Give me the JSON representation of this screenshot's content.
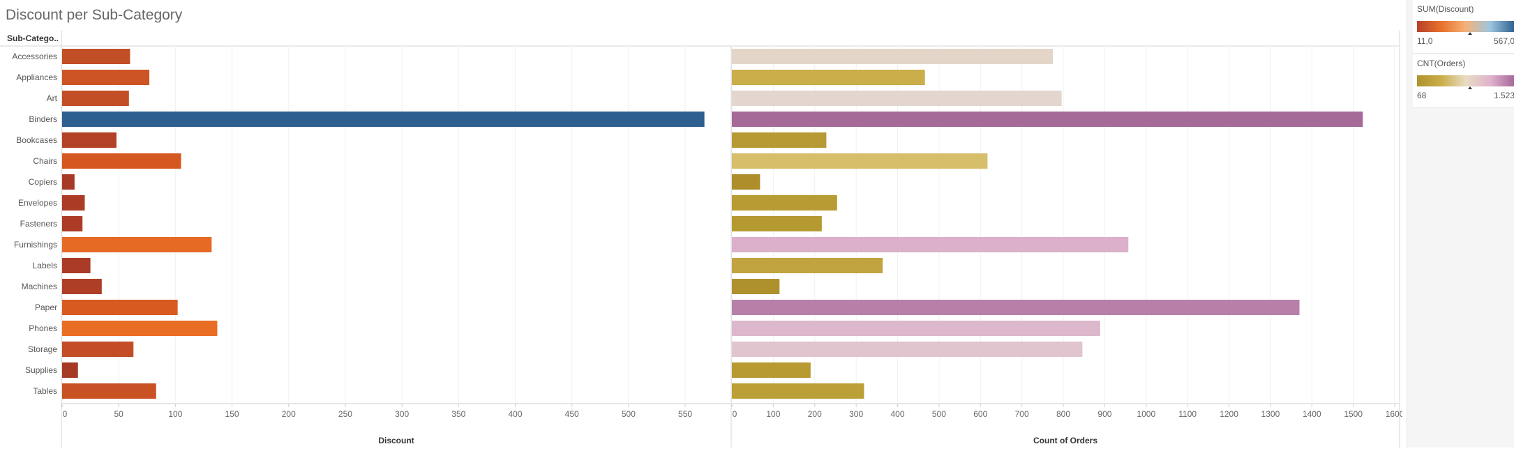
{
  "title": "Discount per Sub-Category",
  "row_header": "Sub-Catego..",
  "legends": [
    {
      "title": "SUM(Discount)",
      "min_label": "11,0",
      "max_label": "567,0",
      "colors": [
        "#b7402a",
        "#e8712c",
        "#f3b27a",
        "#9ec5df",
        "#2d5f8f"
      ]
    },
    {
      "title": "CNT(Orders)",
      "min_label": "68",
      "max_label": "1.523",
      "colors": [
        "#b0922e",
        "#c9ae4a",
        "#e8dcc4",
        "#e0b3cc",
        "#a4679a"
      ]
    }
  ],
  "chart_data": [
    {
      "type": "bar",
      "orientation": "horizontal",
      "categories": [
        "Accessories",
        "Appliances",
        "Art",
        "Binders",
        "Bookcases",
        "Chairs",
        "Copiers",
        "Envelopes",
        "Fasteners",
        "Furnishings",
        "Labels",
        "Machines",
        "Paper",
        "Phones",
        "Storage",
        "Supplies",
        "Tables"
      ],
      "values": [
        60,
        77,
        59,
        567,
        48,
        105,
        11,
        20,
        18,
        132,
        25,
        35,
        102,
        137,
        63,
        14,
        83
      ],
      "xlabel": "Discount",
      "xlim": [
        0,
        590
      ],
      "xticks": [
        0,
        50,
        100,
        150,
        200,
        250,
        300,
        350,
        400,
        450,
        500,
        550
      ],
      "colors": [
        "#c24e26",
        "#cd5425",
        "#c24e26",
        "#2d5f8f",
        "#b34126",
        "#d4581f",
        "#a63a26",
        "#ab3b25",
        "#ad3c26",
        "#e66a24",
        "#aa3b26",
        "#ae3e26",
        "#d75a21",
        "#ea6d25",
        "#c24d26",
        "#a43a26",
        "#c85224"
      ],
      "grid": "vertical"
    },
    {
      "type": "bar",
      "orientation": "horizontal",
      "categories": [
        "Accessories",
        "Appliances",
        "Art",
        "Binders",
        "Bookcases",
        "Chairs",
        "Copiers",
        "Envelopes",
        "Fasteners",
        "Furnishings",
        "Labels",
        "Machines",
        "Paper",
        "Phones",
        "Storage",
        "Supplies",
        "Tables"
      ],
      "values": [
        775,
        466,
        796,
        1523,
        228,
        617,
        68,
        254,
        217,
        957,
        364,
        115,
        1370,
        889,
        846,
        190,
        319
      ],
      "xlabel": "Count of Orders",
      "xlim": [
        0,
        1610
      ],
      "xticks": [
        0,
        100,
        200,
        300,
        400,
        500,
        600,
        700,
        800,
        900,
        1000,
        1100,
        1200,
        1300,
        1400,
        1500,
        1600
      ],
      "colors": [
        "#e3d6c8",
        "#c9ae4a",
        "#e3d6ce",
        "#a66a99",
        "#b69a33",
        "#d7be6a",
        "#ad8e2b",
        "#b79b33",
        "#b59931",
        "#dcb0ca",
        "#c1a440",
        "#ae902d",
        "#b880a9",
        "#ddb7cb",
        "#e0c4ce",
        "#b79a32",
        "#bba038"
      ],
      "grid": "vertical"
    }
  ]
}
